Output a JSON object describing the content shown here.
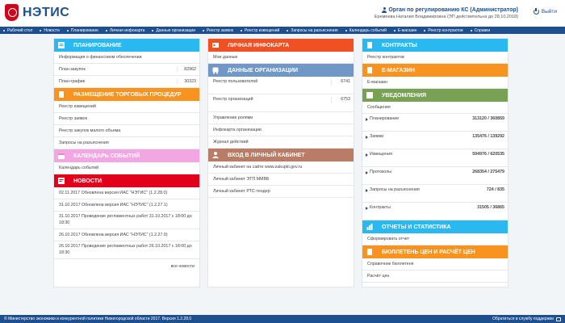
{
  "header": {
    "logo_text": "НЭТИС",
    "user_role": "Орган по регулированию КС (Администратор)",
    "user_name": "Еремеева Наталия Владимировна (ЭП действительна до 28.10.2018)",
    "logout": "Выйти"
  },
  "nav": [
    "Рабочий стол",
    "Новости",
    "Планирование",
    "Личная инфокарта",
    "Данные организации",
    "Реестр заявок",
    "Реестр извещений",
    "Запросы на разъяснения",
    "Календарь событий",
    "Е-магазин",
    "Реестр контрактов",
    "Справки"
  ],
  "colors": {
    "primary": "#1e4f8f",
    "planning": "#29b9f0",
    "trade": "#f7931e",
    "calendar": "#f2a7e3",
    "news": "#e3001b",
    "infocard": "#f05022",
    "org": "#6f98c7",
    "cabinet": "#b97c67",
    "contracts": "#29b9f0",
    "emag": "#f7931e",
    "notif": "#79a153",
    "reports": "#29b9f0",
    "bulletin": "#f7931e"
  },
  "col1": {
    "planning": {
      "title": "Планирование",
      "info": "Информация о финансовом обеспечении",
      "plan_label": "План закупок",
      "plan_val": "82962",
      "graph_label": "План-график",
      "graph_val": "30323"
    },
    "trade": {
      "title": "Размещение торговых процедур",
      "items": [
        "Реестр извещений",
        "Реестр заявок",
        "Реестр закупок малого объема",
        "Запросы на разъяснения"
      ]
    },
    "calendar": {
      "title": "Календарь событий",
      "items": [
        "Календарь событий"
      ]
    },
    "news": {
      "title": "Новости",
      "items": [
        "02.11.2017 Обновлена версия ИАС \"НЭТИС\" (1.2.28.0)",
        "31.10.2017 Обновлена версия ИАС \"НЭТИС\" (1.2.27.1)",
        "31.10.2017 Проведение регламентных работ 31.10.2017 с 18:00 до 18:30",
        "26.10.2017 Обновлена версия ИАС \"НЭТИС\" (1.2.27.0)",
        "26.10.2017 Проведение регламентных работ 26.10.2017 с 18:00 до 18:30"
      ],
      "more": "все новости"
    }
  },
  "col2": {
    "infocard": {
      "title": "Личная инфокарта",
      "items": [
        "Мои данные"
      ]
    },
    "org": {
      "title": "Данные организации",
      "users_label": "Реестр пользователей",
      "users_val": "6741",
      "orgs_label": "Реестр организаций",
      "orgs_val": "6753",
      "items": [
        "Управление ролями",
        "Инфокарта организации",
        "Журнал действий"
      ]
    },
    "cabinet": {
      "title": "Вход в личный кабинет",
      "items": [
        "Личный кабинет на сайте www.zakupki.gov.ru",
        "Личный кабинет ЭТП ММВБ",
        "Личный кабинет РТС-тендер"
      ]
    }
  },
  "col3": {
    "contracts": {
      "title": "Контракты",
      "items": [
        "Реестр контрактов"
      ]
    },
    "emag": {
      "title": "Е-магазин",
      "items": [
        "Е-магазин"
      ]
    },
    "notif": {
      "title": "Уведомления",
      "messages": "Сообщения",
      "rows": [
        {
          "label": "Планирование",
          "value": "313120 / 360859"
        },
        {
          "label": "Заявки",
          "value": "135476 / 139292"
        },
        {
          "label": "Извещения",
          "value": "594976 / 620535"
        },
        {
          "label": "Протоколы",
          "value": "268354 / 275479"
        },
        {
          "label": "Запросы на разъяснения",
          "value": "724 / 835"
        },
        {
          "label": "Контракты",
          "value": "31505 / 36865"
        }
      ]
    },
    "reports": {
      "title": "Отчеты и статистика",
      "items": [
        "Сформировать отчет"
      ]
    },
    "bulletin": {
      "title": "Бюллетень цен и расчёт цен",
      "items": [
        "Справочник бюллетеня",
        "Расчёт цен"
      ]
    }
  },
  "footer": {
    "copyright": "© Министерство экономики и конкурентной политики Нижегородской области 2017. Версия 1.2.28.0",
    "support": "Обратиться в службу поддержки"
  }
}
